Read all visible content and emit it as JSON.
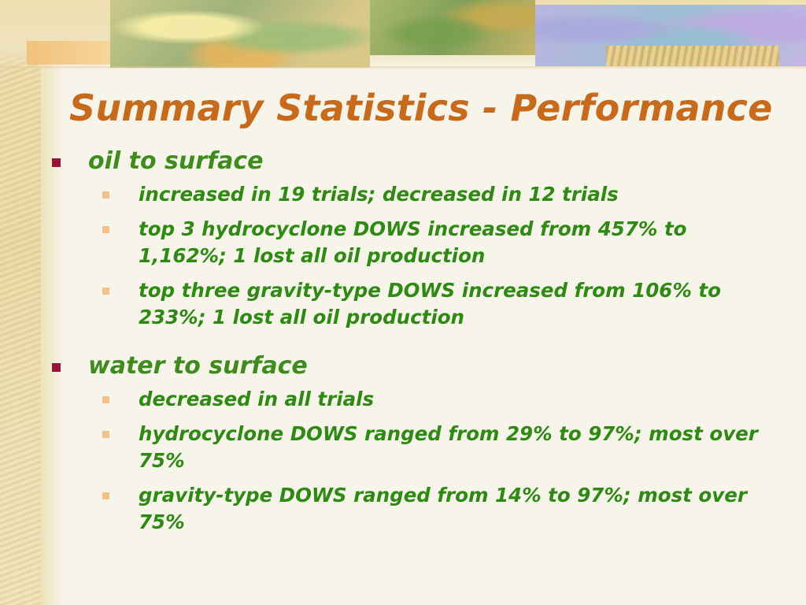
{
  "slide": {
    "title": "Summary Statistics - Performance",
    "sections": [
      {
        "heading": "oil to surface",
        "items": [
          "increased in 19 trials; decreased in 12 trials",
          "top 3 hydrocyclone DOWS increased from 457% to 1,162%;  1 lost all oil production",
          "top three gravity-type DOWS increased from 106% to 233%; 1 lost all oil production"
        ]
      },
      {
        "heading": "water to surface",
        "items": [
          "decreased in all trials",
          "hydrocyclone DOWS ranged from 29% to 97%; most over 75%",
          "gravity-type DOWS ranged from 14% to 97%; most over 75%"
        ]
      }
    ]
  },
  "colors": {
    "title": "#c96a1a",
    "text": "#2f8a14",
    "bullet_primary": "#9b1238",
    "bullet_secondary": "#f2c28a"
  },
  "decor": {
    "banner_icon": "leaf-collage-banner",
    "side_texture": "parchment-strip"
  }
}
